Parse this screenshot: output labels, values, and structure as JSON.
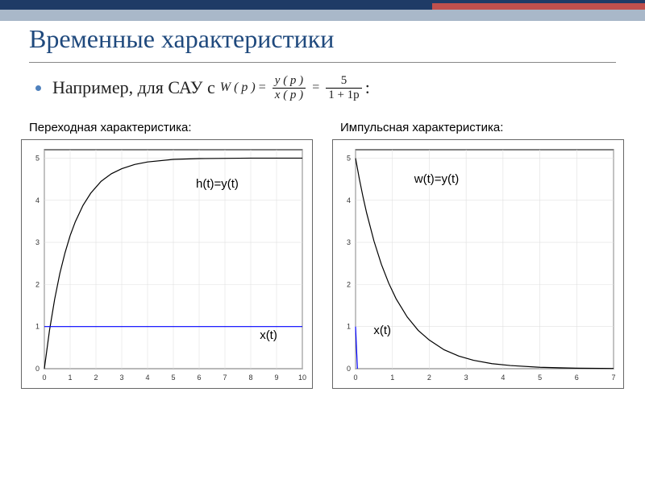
{
  "header": {
    "bar_dark_color": "#1f3b66",
    "bar_light_color": "#a9b8c9",
    "bar_accent_color": "#c0504d"
  },
  "title": {
    "text": "Временные характеристики",
    "color": "#1f497d",
    "fontsize": 32
  },
  "bullet": {
    "prefix": "Например, для САУ с",
    "suffix": ":",
    "formula_lhs": "W ( p )",
    "formula_frac1_num": "y ( p )",
    "formula_frac1_den": "x ( p )",
    "formula_frac2_num": "5",
    "formula_frac2_den": "1 + 1p"
  },
  "chartA": {
    "title": "Переходная характеристика:",
    "type": "line",
    "xlim": [
      0,
      10
    ],
    "ylim": [
      0,
      5.2
    ],
    "xtick_step": 1,
    "ytick_step": 1,
    "grid_color": "#e0e0e0",
    "axis_color": "#000000",
    "background_color": "#ffffff",
    "series": [
      {
        "name": "h",
        "label": "h(t)=y(t)",
        "label_xy": [
          0.6,
          0.15
        ],
        "color": "#000000",
        "line_width": 1.2,
        "xs": [
          0,
          0.2,
          0.4,
          0.6,
          0.8,
          1.0,
          1.2,
          1.5,
          1.8,
          2.2,
          2.6,
          3.0,
          3.5,
          4.0,
          5.0,
          6.0,
          8.0,
          10.0
        ],
        "ys": [
          0,
          0.91,
          1.65,
          2.26,
          2.75,
          3.16,
          3.49,
          3.88,
          4.17,
          4.45,
          4.63,
          4.75,
          4.85,
          4.91,
          4.97,
          4.99,
          5.0,
          5.0
        ]
      },
      {
        "name": "x",
        "label": "x(t)",
        "label_xy": [
          0.82,
          0.76
        ],
        "color": "#0000ff",
        "line_width": 1.2,
        "xs": [
          0,
          10
        ],
        "ys": [
          1,
          1
        ]
      }
    ]
  },
  "chartB": {
    "title": "Импульсная характеристика:",
    "type": "line",
    "xlim": [
      0,
      7
    ],
    "ylim": [
      0,
      5.2
    ],
    "xtick_step": 1,
    "ytick_step": 1,
    "grid_color": "#e0e0e0",
    "axis_color": "#000000",
    "background_color": "#ffffff",
    "series": [
      {
        "name": "w",
        "label": "w(t)=y(t)",
        "label_xy": [
          0.28,
          0.13
        ],
        "color": "#000000",
        "line_width": 1.2,
        "xs": [
          0,
          0.1,
          0.2,
          0.3,
          0.5,
          0.7,
          0.9,
          1.1,
          1.4,
          1.7,
          2.0,
          2.4,
          2.8,
          3.2,
          3.7,
          4.2,
          5.0,
          6.0,
          7.0
        ],
        "ys": [
          5.0,
          4.52,
          4.09,
          3.7,
          3.03,
          2.48,
          2.03,
          1.66,
          1.23,
          0.91,
          0.68,
          0.45,
          0.3,
          0.2,
          0.12,
          0.075,
          0.034,
          0.012,
          0.005
        ]
      },
      {
        "name": "x",
        "label": "x(t)",
        "label_xy": [
          0.14,
          0.74
        ],
        "color": "#0000ff",
        "line_width": 1.2,
        "xs": [
          0,
          0.05
        ],
        "ys": [
          1.0,
          0
        ]
      }
    ]
  }
}
